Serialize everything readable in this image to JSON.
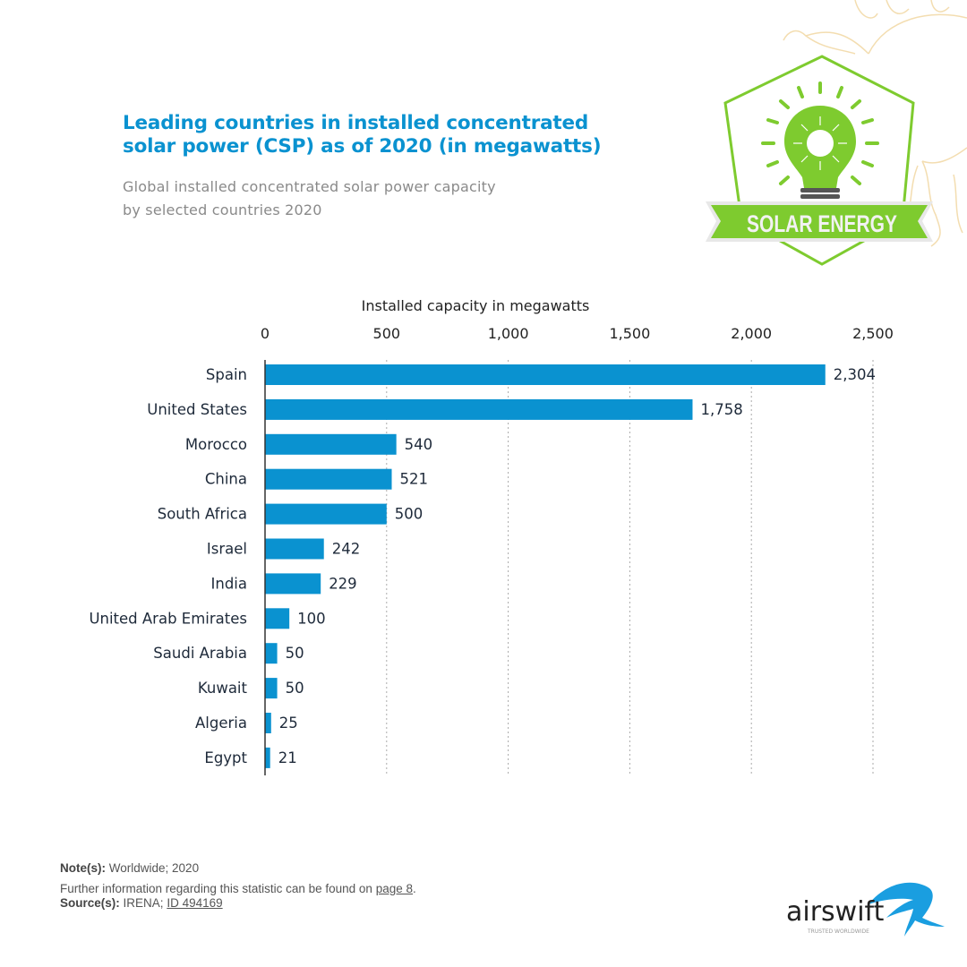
{
  "header": {
    "title": "Leading countries in installed concentrated solar power (CSP) as of 2020 (in megawatts)",
    "title_line1": "Leading countries in installed concentrated",
    "title_line2": "solar power (CSP) as of 2020 (in megawatts)",
    "subtitle_line1": "Global installed concentrated solar power capacity",
    "subtitle_line2": "by selected countries 2020"
  },
  "badge": {
    "text": "SOLAR ENERGY",
    "color": "#7ecb2f"
  },
  "chart_data": {
    "type": "bar",
    "orientation": "horizontal",
    "title": "Leading countries in installed concentrated solar power (CSP) as of 2020 (in megawatts)",
    "xlabel": "Installed capacity in megawatts",
    "ylabel": "",
    "xlim": [
      0,
      2500
    ],
    "xticks": [
      0,
      500,
      1000,
      1500,
      2000,
      2500
    ],
    "xtick_labels": [
      "0",
      "500",
      "1,000",
      "1,500",
      "2,000",
      "2,500"
    ],
    "grid": true,
    "bar_color": "#0a92d0",
    "categories": [
      "Spain",
      "United States",
      "Morocco",
      "China",
      "South Africa",
      "Israel",
      "India",
      "United Arab Emirates",
      "Saudi Arabia",
      "Kuwait",
      "Algeria",
      "Egypt"
    ],
    "values": [
      2304,
      1758,
      540,
      521,
      500,
      242,
      229,
      100,
      50,
      50,
      25,
      21
    ],
    "value_labels": [
      "2,304",
      "1,758",
      "540",
      "521",
      "500",
      "242",
      "229",
      "100",
      "50",
      "50",
      "25",
      "21"
    ]
  },
  "footer": {
    "note_label": "Note(s):",
    "note_text": "Worldwide; 2020",
    "info_text": "Further information regarding this statistic can be found on",
    "info_link": "page 8",
    "info_end": ".",
    "source_label": "Source(s):",
    "source_text": "IRENA;",
    "source_link": "ID 494169"
  },
  "brand": {
    "name": "airswift",
    "tagline": "TRUSTED WORLDWIDE"
  }
}
